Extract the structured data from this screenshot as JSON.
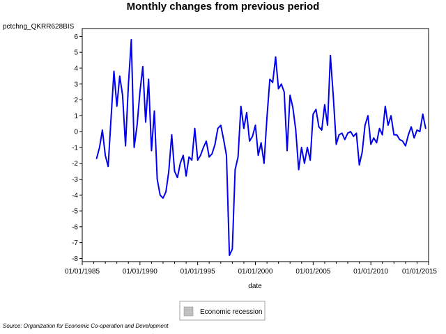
{
  "chart_data": {
    "type": "line",
    "title": "Monthly changes from previous period",
    "ylabel": "pctchng_QKRR628BIS",
    "xlabel": "date",
    "source": "Source: Organization for Economic Co-operation and Development",
    "legend": {
      "label": "Economic recession",
      "swatch_color": "#c0c0c0",
      "placement": "bottom-center"
    },
    "line_color": "#0000ee",
    "xlim": [
      "1985-01-01",
      "2015-01-01"
    ],
    "ylim": [
      -8.2,
      6.5
    ],
    "x_ticks": [
      "01/01/1985",
      "01/01/1990",
      "01/01/1995",
      "01/01/2000",
      "01/01/2005",
      "01/01/2010",
      "01/01/2015"
    ],
    "y_ticks": [
      6,
      5,
      4,
      3,
      2,
      1,
      0,
      -1,
      -2,
      -3,
      -4,
      -5,
      -6,
      -7,
      -8
    ],
    "grid": false,
    "series": [
      {
        "x": [
          "1986-04-01",
          "1986-07-01",
          "1986-10-01",
          "1987-01-01",
          "1987-04-01",
          "1987-07-01",
          "1987-10-01",
          "1988-01-01",
          "1988-04-01",
          "1988-07-01",
          "1988-10-01",
          "1989-01-01",
          "1989-04-01",
          "1989-07-01",
          "1989-10-01",
          "1990-01-01",
          "1990-04-01",
          "1990-07-01",
          "1990-10-01",
          "1991-01-01",
          "1991-04-01",
          "1991-07-01",
          "1991-10-01",
          "1992-01-01",
          "1992-04-01",
          "1992-07-01",
          "1992-10-01",
          "1993-01-01",
          "1993-04-01",
          "1993-07-01",
          "1993-10-01",
          "1994-01-01",
          "1994-04-01",
          "1994-07-01",
          "1994-10-01",
          "1995-01-01",
          "1995-04-01",
          "1995-07-01",
          "1995-10-01",
          "1996-01-01",
          "1996-04-01",
          "1996-07-01",
          "1996-10-01",
          "1997-01-01",
          "1997-04-01",
          "1997-07-01",
          "1997-10-01",
          "1998-01-01",
          "1998-04-01",
          "1998-07-01",
          "1998-10-01",
          "1999-01-01",
          "1999-04-01",
          "1999-07-01",
          "1999-10-01",
          "2000-01-01",
          "2000-04-01",
          "2000-07-01",
          "2000-10-01",
          "2001-01-01",
          "2001-04-01",
          "2001-07-01",
          "2001-10-01",
          "2002-01-01",
          "2002-04-01",
          "2002-07-01",
          "2002-10-01",
          "2003-01-01",
          "2003-04-01",
          "2003-07-01",
          "2003-10-01",
          "2004-01-01",
          "2004-04-01",
          "2004-07-01",
          "2004-10-01",
          "2005-01-01",
          "2005-04-01",
          "2005-07-01",
          "2005-10-01",
          "2006-01-01",
          "2006-04-01",
          "2006-07-01",
          "2006-10-01",
          "2007-01-01",
          "2007-04-01",
          "2007-07-01",
          "2007-10-01",
          "2008-01-01",
          "2008-04-01",
          "2008-07-01",
          "2008-10-01",
          "2009-01-01",
          "2009-04-01",
          "2009-07-01",
          "2009-10-01",
          "2010-01-01",
          "2010-04-01",
          "2010-07-01",
          "2010-10-01",
          "2011-01-01",
          "2011-04-01",
          "2011-07-01",
          "2011-10-01",
          "2012-01-01",
          "2012-04-01",
          "2012-07-01",
          "2012-10-01",
          "2013-01-01",
          "2013-04-01",
          "2013-07-01",
          "2013-10-01",
          "2014-01-01",
          "2014-04-01",
          "2014-07-01",
          "2014-10-01"
        ],
        "values": [
          -1.7,
          -1.0,
          0.1,
          -1.5,
          -2.2,
          0.8,
          3.8,
          1.6,
          3.5,
          2.3,
          -0.9,
          3.0,
          5.8,
          -1.0,
          0.4,
          2.5,
          4.1,
          0.6,
          3.3,
          -1.2,
          1.3,
          -3.0,
          -4.0,
          -4.2,
          -3.8,
          -2.5,
          -0.2,
          -2.5,
          -2.9,
          -2.0,
          -1.5,
          -2.8,
          -1.6,
          -1.8,
          0.2,
          -1.8,
          -1.5,
          -1.0,
          -0.6,
          -1.6,
          -1.4,
          -0.8,
          0.2,
          0.4,
          -0.5,
          -1.5,
          -7.8,
          -7.4,
          -2.4,
          -1.6,
          1.6,
          0.2,
          1.2,
          -0.6,
          -0.3,
          0.4,
          -1.5,
          -0.7,
          -2.0,
          0.9,
          3.3,
          3.1,
          4.7,
          2.7,
          3.0,
          2.5,
          -1.2,
          2.3,
          1.5,
          0.1,
          -2.4,
          -1.0,
          -2.0,
          -1.0,
          -1.8,
          1.1,
          1.4,
          0.3,
          0.1,
          1.7,
          0.4,
          4.8,
          2.2,
          -0.8,
          -0.2,
          -0.1,
          -0.5,
          -0.1,
          0.0,
          -0.3,
          -0.1,
          -2.1,
          -1.3,
          0.4,
          1.0,
          -0.8,
          -0.4,
          -0.7,
          0.2,
          -0.2,
          1.6,
          0.4,
          1.0,
          -0.2,
          -0.2,
          -0.5,
          -0.6,
          -0.9,
          -0.2,
          0.3,
          -0.4,
          0.1,
          0.0,
          1.1,
          0.2
        ]
      }
    ]
  }
}
